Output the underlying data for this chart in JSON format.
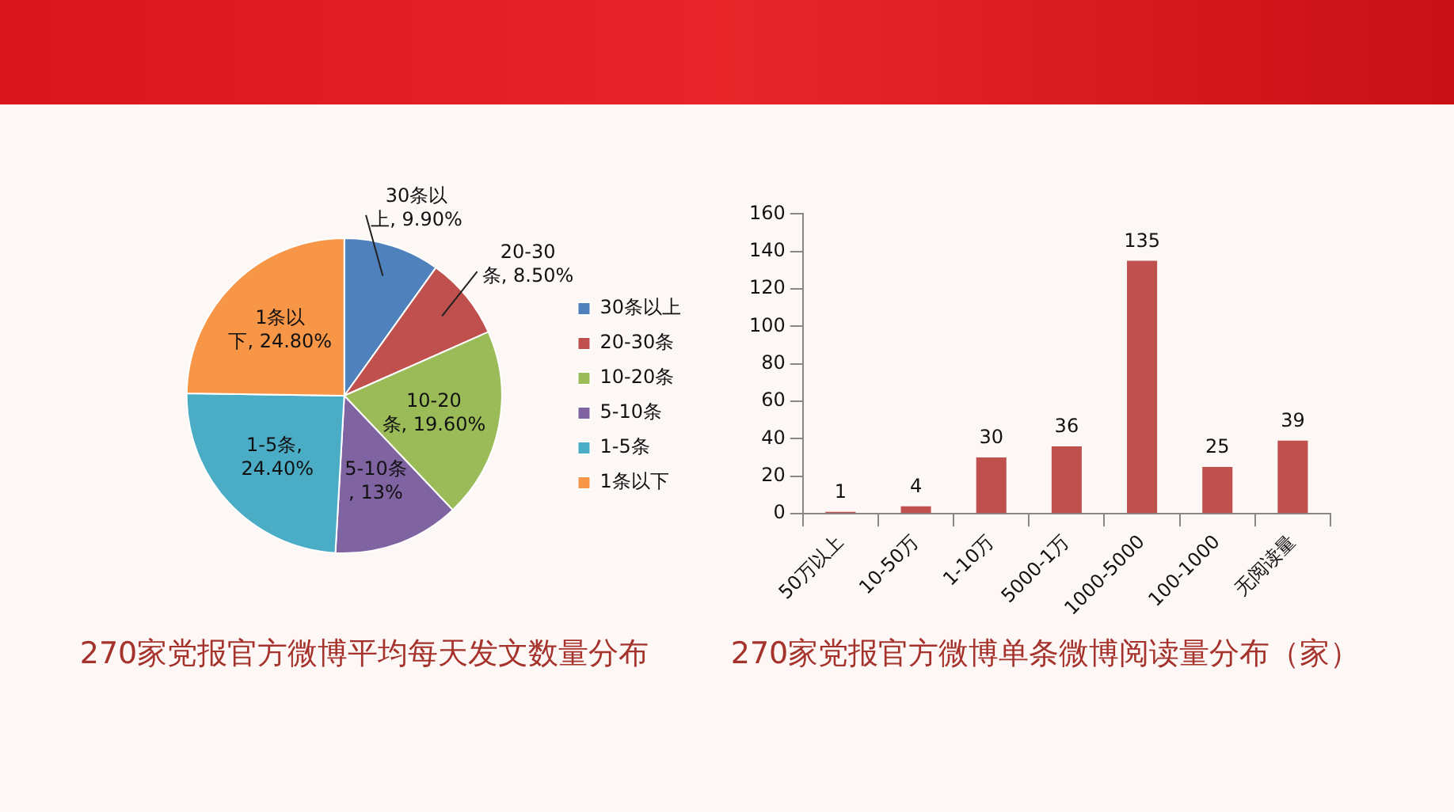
{
  "chart_data": [
    {
      "type": "pie",
      "title": "270家党报官方微博平均每天发文数量分布",
      "categories": [
        "30条以上",
        "20-30条",
        "10-20条",
        "5-10条",
        "1-5条",
        "1条以下"
      ],
      "values": [
        9.9,
        8.5,
        19.6,
        13,
        24.4,
        24.8
      ],
      "value_labels": [
        "30条以上, 9.90%",
        "20-30条, 8.50%",
        "10-20条, 19.60%",
        "5-10条, 13%",
        "1-5条, 24.40%",
        "1条以下, 24.80%"
      ],
      "colors": [
        "#4f81bd",
        "#c0504d",
        "#9bbb59",
        "#8064a2",
        "#4bacc6",
        "#f79646"
      ],
      "legend": "right"
    },
    {
      "type": "bar",
      "title": "270家党报官方微博单条微博阅读量分布（家）",
      "categories": [
        "50万以上",
        "10-50万",
        "1-10万",
        "5000-1万",
        "1000-5000",
        "100-1000",
        "无阅读量"
      ],
      "values": [
        1,
        4,
        30,
        36,
        135,
        25,
        39
      ],
      "color": "#c0504d",
      "ylim": [
        0,
        160
      ],
      "yticks": [
        0,
        20,
        40,
        60,
        80,
        100,
        120,
        140,
        160
      ],
      "data_labels": true,
      "grid": false
    }
  ]
}
